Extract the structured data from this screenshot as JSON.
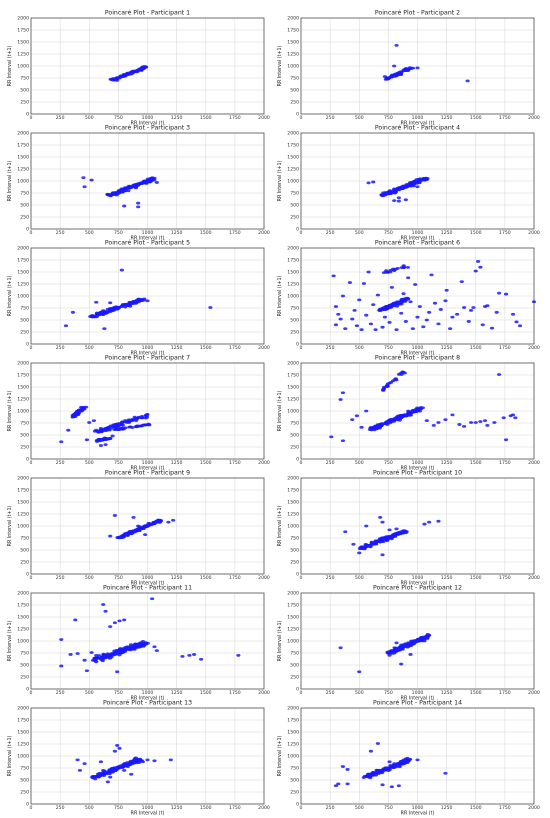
{
  "figure": {
    "ticks": [
      0,
      250,
      500,
      750,
      1000,
      1250,
      1500,
      1750,
      2000
    ],
    "xlim": [
      0,
      2000
    ],
    "ylim": [
      0,
      2000
    ],
    "grid": true,
    "point_color": "#1a1aff"
  },
  "chart_data": [
    {
      "type": "scatter",
      "title": "Poincaré Plot - Participant 1",
      "xlabel": "RR Interval (t)",
      "ylabel": "RR Interval (t+1)",
      "xlim": [
        0,
        2000
      ],
      "ylim": [
        0,
        2000
      ],
      "grid": true,
      "cluster": [
        {
          "x0": 700,
          "y0": 710,
          "x1": 980,
          "y1": 970,
          "spread": 25,
          "n": 90
        }
      ],
      "points": [
        [
          740,
          700
        ],
        [
          950,
          960
        ]
      ]
    },
    {
      "type": "scatter",
      "title": "Poincaré Plot - Participant 2",
      "xlabel": "RR Interval (t)",
      "ylabel": "RR Interval (t+1)",
      "xlim": [
        0,
        2000
      ],
      "ylim": [
        0,
        2000
      ],
      "grid": true,
      "cluster": [
        {
          "x0": 730,
          "y0": 730,
          "x1": 950,
          "y1": 960,
          "spread": 28,
          "n": 70
        }
      ],
      "points": [
        [
          1000,
          960
        ],
        [
          820,
          1430
        ],
        [
          1430,
          690
        ],
        [
          800,
          1000
        ],
        [
          720,
          780
        ]
      ]
    },
    {
      "type": "scatter",
      "title": "Poincaré Plot - Participant 3",
      "xlabel": "RR Interval (t)",
      "ylabel": "RR Interval (t+1)",
      "xlim": [
        0,
        2000
      ],
      "ylim": [
        0,
        2000
      ],
      "grid": true,
      "cluster": [
        {
          "x0": 660,
          "y0": 690,
          "x1": 1060,
          "y1": 1050,
          "spread": 35,
          "n": 140
        }
      ],
      "points": [
        [
          450,
          1070
        ],
        [
          520,
          1020
        ],
        [
          460,
          880
        ],
        [
          800,
          480
        ],
        [
          920,
          460
        ],
        [
          920,
          540
        ],
        [
          1080,
          970
        ],
        [
          1060,
          1060
        ]
      ]
    },
    {
      "type": "scatter",
      "title": "Poincaré Plot - Participant 4",
      "xlabel": "RR Interval (t)",
      "ylabel": "RR Interval (t+1)",
      "xlim": [
        0,
        2000
      ],
      "ylim": [
        0,
        2000
      ],
      "grid": true,
      "cluster": [
        {
          "x0": 700,
          "y0": 700,
          "x1": 1080,
          "y1": 1060,
          "spread": 35,
          "n": 140
        }
      ],
      "points": [
        [
          580,
          960
        ],
        [
          620,
          980
        ],
        [
          840,
          580
        ],
        [
          840,
          650
        ],
        [
          900,
          610
        ],
        [
          800,
          590
        ],
        [
          1000,
          880
        ]
      ]
    },
    {
      "type": "scatter",
      "title": "Poincaré Plot - Participant 5",
      "xlabel": "RR Interval (t)",
      "ylabel": "RR Interval (t+1)",
      "xlim": [
        0,
        2000
      ],
      "ylim": [
        0,
        2000
      ],
      "grid": true,
      "cluster": [
        {
          "x0": 520,
          "y0": 560,
          "x1": 960,
          "y1": 940,
          "spread": 40,
          "n": 140
        }
      ],
      "points": [
        [
          300,
          380
        ],
        [
          360,
          660
        ],
        [
          560,
          870
        ],
        [
          630,
          320
        ],
        [
          780,
          1540
        ],
        [
          1540,
          760
        ],
        [
          680,
          860
        ],
        [
          1000,
          900
        ]
      ]
    },
    {
      "type": "scatter",
      "title": "Poincaré Plot - Participant 6",
      "xlabel": "RR Interval (t)",
      "ylabel": "RR Interval (t+1)",
      "xlim": [
        0,
        2000
      ],
      "ylim": [
        0,
        2000
      ],
      "grid": true,
      "cluster": [
        {
          "x0": 680,
          "y0": 700,
          "x1": 920,
          "y1": 940,
          "spread": 35,
          "n": 90
        },
        {
          "x0": 700,
          "y0": 1480,
          "x1": 900,
          "y1": 1620,
          "spread": 30,
          "n": 18
        }
      ],
      "points": [
        [
          280,
          1420
        ],
        [
          300,
          780
        ],
        [
          320,
          620
        ],
        [
          340,
          520
        ],
        [
          300,
          400
        ],
        [
          360,
          1000
        ],
        [
          380,
          320
        ],
        [
          420,
          1280
        ],
        [
          440,
          520
        ],
        [
          460,
          700
        ],
        [
          480,
          380
        ],
        [
          500,
          920
        ],
        [
          520,
          300
        ],
        [
          540,
          1260
        ],
        [
          560,
          600
        ],
        [
          580,
          1500
        ],
        [
          600,
          420
        ],
        [
          620,
          820
        ],
        [
          640,
          300
        ],
        [
          660,
          1020
        ],
        [
          700,
          350
        ],
        [
          720,
          560
        ],
        [
          760,
          450
        ],
        [
          780,
          1180
        ],
        [
          820,
          300
        ],
        [
          860,
          640
        ],
        [
          880,
          1050
        ],
        [
          900,
          470
        ],
        [
          920,
          1380
        ],
        [
          940,
          880
        ],
        [
          960,
          320
        ],
        [
          980,
          1240
        ],
        [
          1000,
          560
        ],
        [
          1020,
          780
        ],
        [
          1050,
          360
        ],
        [
          1080,
          500
        ],
        [
          1100,
          660
        ],
        [
          1120,
          1440
        ],
        [
          1150,
          850
        ],
        [
          1180,
          420
        ],
        [
          1200,
          720
        ],
        [
          1240,
          900
        ],
        [
          1250,
          1120
        ],
        [
          1280,
          320
        ],
        [
          1300,
          560
        ],
        [
          1340,
          620
        ],
        [
          1380,
          1300
        ],
        [
          1400,
          760
        ],
        [
          1440,
          470
        ],
        [
          1460,
          700
        ],
        [
          1480,
          760
        ],
        [
          1500,
          1520
        ],
        [
          1520,
          1720
        ],
        [
          1540,
          1600
        ],
        [
          1560,
          400
        ],
        [
          1580,
          780
        ],
        [
          1600,
          800
        ],
        [
          1640,
          330
        ],
        [
          1680,
          660
        ],
        [
          1700,
          1060
        ],
        [
          1760,
          1040
        ],
        [
          1820,
          620
        ],
        [
          1850,
          460
        ],
        [
          1880,
          380
        ],
        [
          2000,
          880
        ]
      ]
    },
    {
      "type": "scatter",
      "title": "Poincaré Plot - Participant 7",
      "xlabel": "RR Interval (t)",
      "ylabel": "RR Interval (t+1)",
      "xlim": [
        0,
        2000
      ],
      "ylim": [
        0,
        2000
      ],
      "grid": true,
      "cluster": [
        {
          "x0": 360,
          "y0": 880,
          "x1": 460,
          "y1": 1080,
          "spread": 30,
          "n": 45
        },
        {
          "x0": 560,
          "y0": 560,
          "x1": 1000,
          "y1": 920,
          "spread": 40,
          "n": 90
        },
        {
          "x0": 700,
          "y0": 600,
          "x1": 1020,
          "y1": 720,
          "spread": 15,
          "n": 35
        },
        {
          "x0": 560,
          "y0": 380,
          "x1": 680,
          "y1": 440,
          "spread": 20,
          "n": 28
        }
      ],
      "points": [
        [
          260,
          360
        ],
        [
          320,
          600
        ],
        [
          500,
          760
        ],
        [
          540,
          800
        ],
        [
          640,
          300
        ],
        [
          600,
          280
        ],
        [
          700,
          480
        ],
        [
          480,
          400
        ]
      ]
    },
    {
      "type": "scatter",
      "title": "Poincaré Plot - Participant 8",
      "xlabel": "RR Interval (t)",
      "ylabel": "RR Interval (t+1)",
      "xlim": [
        0,
        2000
      ],
      "ylim": [
        0,
        2000
      ],
      "grid": true,
      "cluster": [
        {
          "x0": 600,
          "y0": 620,
          "x1": 1040,
          "y1": 1060,
          "spread": 40,
          "n": 160
        },
        {
          "x0": 700,
          "y0": 1450,
          "x1": 900,
          "y1": 1850,
          "spread": 25,
          "n": 22
        }
      ],
      "points": [
        [
          260,
          460
        ],
        [
          340,
          1240
        ],
        [
          360,
          1380
        ],
        [
          360,
          380
        ],
        [
          440,
          820
        ],
        [
          480,
          900
        ],
        [
          520,
          660
        ],
        [
          560,
          1000
        ],
        [
          1080,
          800
        ],
        [
          1140,
          700
        ],
        [
          1180,
          760
        ],
        [
          1240,
          820
        ],
        [
          1300,
          920
        ],
        [
          1360,
          720
        ],
        [
          1400,
          680
        ],
        [
          1460,
          760
        ],
        [
          1500,
          760
        ],
        [
          1540,
          780
        ],
        [
          1580,
          800
        ],
        [
          1600,
          700
        ],
        [
          1660,
          760
        ],
        [
          1700,
          1760
        ],
        [
          1740,
          860
        ],
        [
          1760,
          400
        ],
        [
          1800,
          900
        ],
        [
          1840,
          860
        ],
        [
          1820,
          920
        ]
      ]
    },
    {
      "type": "scatter",
      "title": "Poincaré Plot - Participant 9",
      "xlabel": "RR Interval (t)",
      "ylabel": "RR Interval (t+1)",
      "xlim": [
        0,
        2000
      ],
      "ylim": [
        0,
        2000
      ],
      "grid": true,
      "cluster": [
        {
          "x0": 740,
          "y0": 740,
          "x1": 1120,
          "y1": 1130,
          "spread": 28,
          "n": 140
        }
      ],
      "points": [
        [
          720,
          1220
        ],
        [
          680,
          790
        ],
        [
          880,
          1180
        ],
        [
          980,
          820
        ],
        [
          1180,
          1080
        ],
        [
          1220,
          1120
        ],
        [
          920,
          1000
        ]
      ]
    },
    {
      "type": "scatter",
      "title": "Poincaré Plot - Participant 10",
      "xlabel": "RR Interval (t)",
      "ylabel": "RR Interval (t+1)",
      "xlim": [
        0,
        2000
      ],
      "ylim": [
        0,
        2000
      ],
      "grid": true,
      "cluster": [
        {
          "x0": 520,
          "y0": 540,
          "x1": 900,
          "y1": 900,
          "spread": 40,
          "n": 140
        }
      ],
      "points": [
        [
          380,
          880
        ],
        [
          450,
          620
        ],
        [
          500,
          440
        ],
        [
          560,
          1000
        ],
        [
          680,
          1180
        ],
        [
          700,
          1080
        ],
        [
          700,
          400
        ],
        [
          760,
          920
        ],
        [
          820,
          940
        ],
        [
          900,
          860
        ],
        [
          1060,
          1040
        ],
        [
          1100,
          1080
        ],
        [
          1180,
          1100
        ]
      ]
    },
    {
      "type": "scatter",
      "title": "Poincaré Plot - Participant 11",
      "xlabel": "RR Interval (t)",
      "ylabel": "RR Interval (t+1)",
      "xlim": [
        0,
        2000
      ],
      "ylim": [
        0,
        2000
      ],
      "grid": true,
      "cluster": [
        {
          "x0": 560,
          "y0": 620,
          "x1": 980,
          "y1": 960,
          "spread": 55,
          "n": 170
        }
      ],
      "points": [
        [
          260,
          1030
        ],
        [
          260,
          480
        ],
        [
          340,
          720
        ],
        [
          380,
          1440
        ],
        [
          400,
          740
        ],
        [
          460,
          600
        ],
        [
          480,
          380
        ],
        [
          520,
          760
        ],
        [
          560,
          700
        ],
        [
          620,
          1760
        ],
        [
          640,
          1620
        ],
        [
          680,
          1300
        ],
        [
          720,
          1380
        ],
        [
          740,
          360
        ],
        [
          760,
          1420
        ],
        [
          800,
          1440
        ],
        [
          1040,
          1880
        ],
        [
          1060,
          880
        ],
        [
          1080,
          800
        ],
        [
          1300,
          680
        ],
        [
          1360,
          700
        ],
        [
          1400,
          720
        ],
        [
          1460,
          620
        ],
        [
          1780,
          700
        ]
      ]
    },
    {
      "type": "scatter",
      "title": "Poincaré Plot - Participant 12",
      "xlabel": "RR Interval (t)",
      "ylabel": "RR Interval (t+1)",
      "xlim": [
        0,
        2000
      ],
      "ylim": [
        0,
        2000
      ],
      "grid": true,
      "cluster": [
        {
          "x0": 760,
          "y0": 760,
          "x1": 1090,
          "y1": 1100,
          "spread": 40,
          "n": 170
        }
      ],
      "points": [
        [
          340,
          860
        ],
        [
          500,
          360
        ],
        [
          860,
          520
        ],
        [
          820,
          960
        ],
        [
          1100,
          1120
        ],
        [
          940,
          720
        ],
        [
          760,
          700
        ],
        [
          1060,
          1000
        ]
      ]
    },
    {
      "type": "scatter",
      "title": "Poincaré Plot - Participant 13",
      "xlabel": "RR Interval (t)",
      "ylabel": "RR Interval (t+1)",
      "xlim": [
        0,
        2000
      ],
      "ylim": [
        0,
        2000
      ],
      "grid": true,
      "cluster": [
        {
          "x0": 540,
          "y0": 560,
          "x1": 940,
          "y1": 930,
          "spread": 40,
          "n": 150
        }
      ],
      "points": [
        [
          400,
          920
        ],
        [
          420,
          700
        ],
        [
          460,
          840
        ],
        [
          600,
          880
        ],
        [
          620,
          700
        ],
        [
          660,
          460
        ],
        [
          680,
          560
        ],
        [
          720,
          1100
        ],
        [
          740,
          1220
        ],
        [
          760,
          1160
        ],
        [
          800,
          700
        ],
        [
          860,
          620
        ],
        [
          900,
          960
        ],
        [
          960,
          880
        ],
        [
          1000,
          920
        ],
        [
          1060,
          900
        ],
        [
          1200,
          920
        ]
      ]
    },
    {
      "type": "scatter",
      "title": "Poincaré Plot - Participant 14",
      "xlabel": "RR Interval (t)",
      "ylabel": "RR Interval (t+1)",
      "xlim": [
        0,
        2000
      ],
      "ylim": [
        0,
        2000
      ],
      "grid": true,
      "cluster": [
        {
          "x0": 560,
          "y0": 570,
          "x1": 940,
          "y1": 930,
          "spread": 40,
          "n": 150
        }
      ],
      "points": [
        [
          300,
          380
        ],
        [
          320,
          420
        ],
        [
          360,
          780
        ],
        [
          400,
          720
        ],
        [
          400,
          420
        ],
        [
          600,
          1100
        ],
        [
          660,
          1260
        ],
        [
          700,
          400
        ],
        [
          760,
          880
        ],
        [
          780,
          360
        ],
        [
          840,
          380
        ],
        [
          900,
          940
        ],
        [
          1000,
          920
        ],
        [
          1240,
          640
        ]
      ]
    }
  ]
}
